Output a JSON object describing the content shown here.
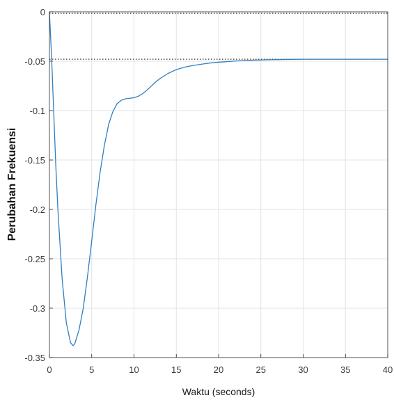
{
  "chart_data": {
    "type": "line",
    "title": "",
    "xlabel": "Waktu (seconds)",
    "ylabel": "Perubahan Frekuensi",
    "xlim": [
      0,
      40
    ],
    "ylim": [
      -0.35,
      0
    ],
    "grid": true,
    "x_ticks": [
      "0",
      "5",
      "10",
      "15",
      "20",
      "25",
      "30",
      "35",
      "40"
    ],
    "y_ticks": [
      "0",
      "-0.05",
      "-0.1",
      "-0.15",
      "-0.2",
      "-0.25",
      "-0.3",
      "-0.35"
    ],
    "reference_lines": [
      {
        "y": -0.0015,
        "style": "dotted"
      },
      {
        "y": -0.048,
        "style": "dotted"
      }
    ],
    "series": [
      {
        "color": "#2f7fc1",
        "x": [
          0,
          0.25,
          0.5,
          0.75,
          1,
          1.5,
          2,
          2.5,
          2.8,
          3,
          3.5,
          4,
          4.5,
          5,
          5.5,
          6,
          6.5,
          7,
          7.5,
          8,
          8.5,
          9,
          9.5,
          10,
          10.5,
          11,
          11.5,
          12,
          12.5,
          13,
          14,
          15,
          16,
          17,
          18,
          19,
          20,
          22,
          24,
          26,
          28,
          30,
          32,
          34,
          36,
          38,
          40
        ],
        "y": [
          0,
          -0.045,
          -0.1,
          -0.155,
          -0.2,
          -0.27,
          -0.315,
          -0.335,
          -0.338,
          -0.336,
          -0.322,
          -0.3,
          -0.268,
          -0.232,
          -0.195,
          -0.162,
          -0.135,
          -0.114,
          -0.101,
          -0.093,
          -0.0895,
          -0.088,
          -0.0875,
          -0.087,
          -0.0855,
          -0.083,
          -0.0795,
          -0.0755,
          -0.0715,
          -0.068,
          -0.0625,
          -0.0585,
          -0.056,
          -0.0543,
          -0.053,
          -0.0518,
          -0.051,
          -0.0498,
          -0.049,
          -0.0485,
          -0.0482,
          -0.048,
          -0.048,
          -0.048,
          -0.048,
          -0.048,
          -0.048
        ]
      }
    ]
  }
}
